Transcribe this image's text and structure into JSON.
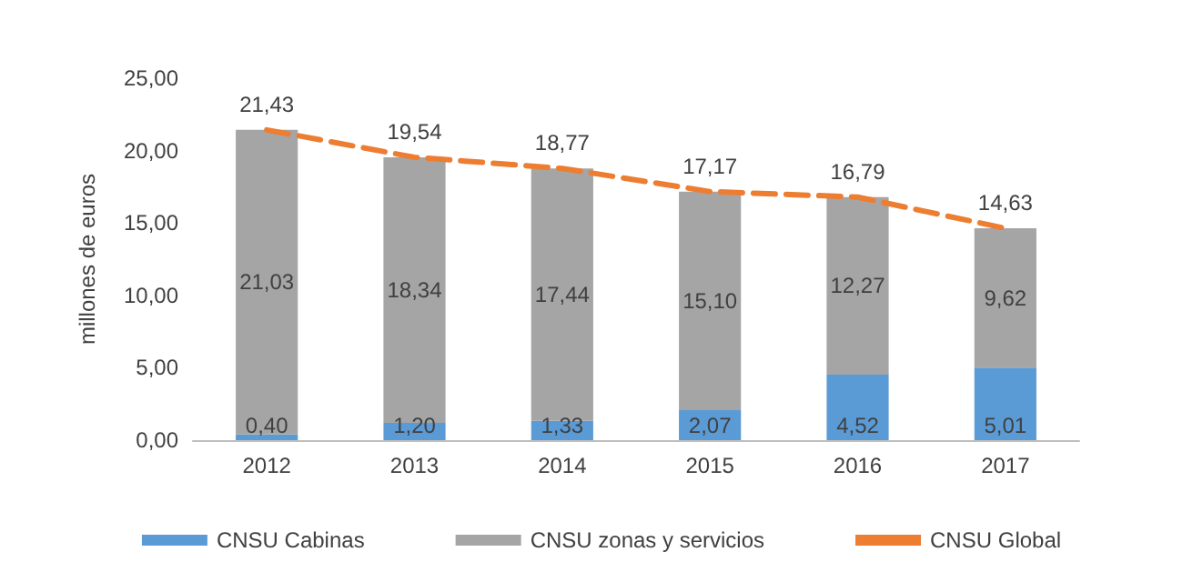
{
  "chart_data": {
    "type": "bar",
    "stacked": true,
    "ylabel": "millones de euros",
    "categories": [
      "2012",
      "2013",
      "2014",
      "2015",
      "2016",
      "2017"
    ],
    "ylim": [
      0,
      25
    ],
    "yticks": [
      {
        "value": 0,
        "label": "0,00"
      },
      {
        "value": 5,
        "label": "5,00"
      },
      {
        "value": 10,
        "label": "10,00"
      },
      {
        "value": 15,
        "label": "15,00"
      },
      {
        "value": 20,
        "label": "20,00"
      },
      {
        "value": 25,
        "label": "25,00"
      }
    ],
    "grid": false,
    "legend": "bottom",
    "series": [
      {
        "name": "CNSU Cabinas",
        "color": "#5b9bd5",
        "values": [
          0.4,
          1.2,
          1.33,
          2.07,
          4.52,
          5.01
        ],
        "value_labels": [
          "0,40",
          "1,20",
          "1,33",
          "2,07",
          "4,52",
          "5,01"
        ]
      },
      {
        "name": "CNSU zonas y servicios",
        "color": "#a5a5a5",
        "values": [
          21.03,
          18.34,
          17.44,
          15.1,
          12.27,
          9.62
        ],
        "value_labels": [
          "21,03",
          "18,34",
          "17,44",
          "15,10",
          "12,27",
          "9,62"
        ]
      },
      {
        "name": "CNSU Global",
        "type": "line",
        "color": "#ed7d31",
        "line_style": "dashed",
        "marker": "none",
        "values": [
          21.43,
          19.54,
          18.77,
          17.17,
          16.79,
          14.63
        ],
        "value_labels": [
          "21,43",
          "19,54",
          "18,77",
          "17,17",
          "16,79",
          "14,63"
        ]
      }
    ]
  }
}
